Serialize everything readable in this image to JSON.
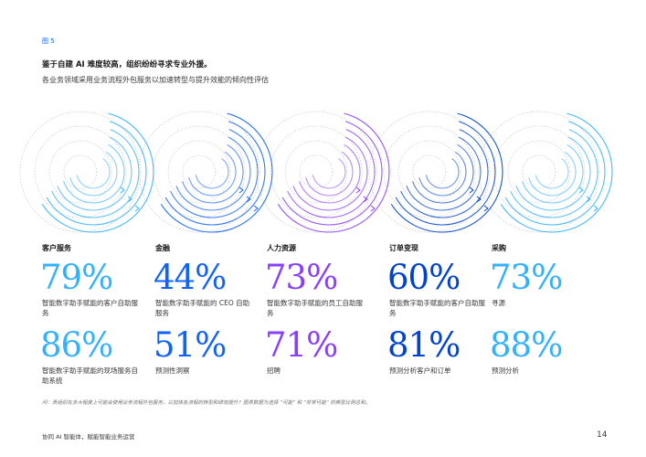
{
  "figure_label": "图 5",
  "title": "鉴于自建 AI 难度较高，组织纷纷寻求专业外援。",
  "subtitle": "各业务领域采用业务流程外包服务以加速转型与提升效能的倾向性评估",
  "colors": {
    "blue": "#0f62fe",
    "cyan": "#33b1ff",
    "purple": "#8a3ffc",
    "dark_blue": "#0043ce",
    "indigo": "#4589ff"
  },
  "columns": [
    {
      "title": "客户服务",
      "stats": [
        {
          "value": "79%",
          "caption": "智能数字助手赋能的客户自助服务"
        },
        {
          "value": "86%",
          "caption": "智能数字助手赋能的现场服务自助系统"
        }
      ]
    },
    {
      "title": "金融",
      "stats": [
        {
          "value": "44%",
          "caption": "智能数字助手赋能的 CEO 自助服务"
        },
        {
          "value": "51%",
          "caption": "预测性洞察"
        }
      ]
    },
    {
      "title": "人力资源",
      "stats": [
        {
          "value": "73%",
          "caption": "智能数字助手赋能的员工自助服务"
        },
        {
          "value": "71%",
          "caption": "招聘"
        }
      ]
    },
    {
      "title": "订单变现",
      "stats": [
        {
          "value": "60%",
          "caption": "智能数字助手赋能的客户自助服务"
        },
        {
          "value": "81%",
          "caption": "预测分析客户和订单"
        }
      ]
    },
    {
      "title": "采购",
      "stats": [
        {
          "value": "73%",
          "caption": "寻源"
        },
        {
          "value": "88%",
          "caption": "预测分析"
        }
      ]
    }
  ],
  "footnote": "问：贵组织在多大程度上可能会使用业务流程外包服务，以加快各流程的转型和绩效提升？图表数据为选择 “可能” 和 “非常可能” 的典型比例总和。",
  "footer_title": "协同 AI 智能体，赋能智能业务运营",
  "page_number": "14"
}
